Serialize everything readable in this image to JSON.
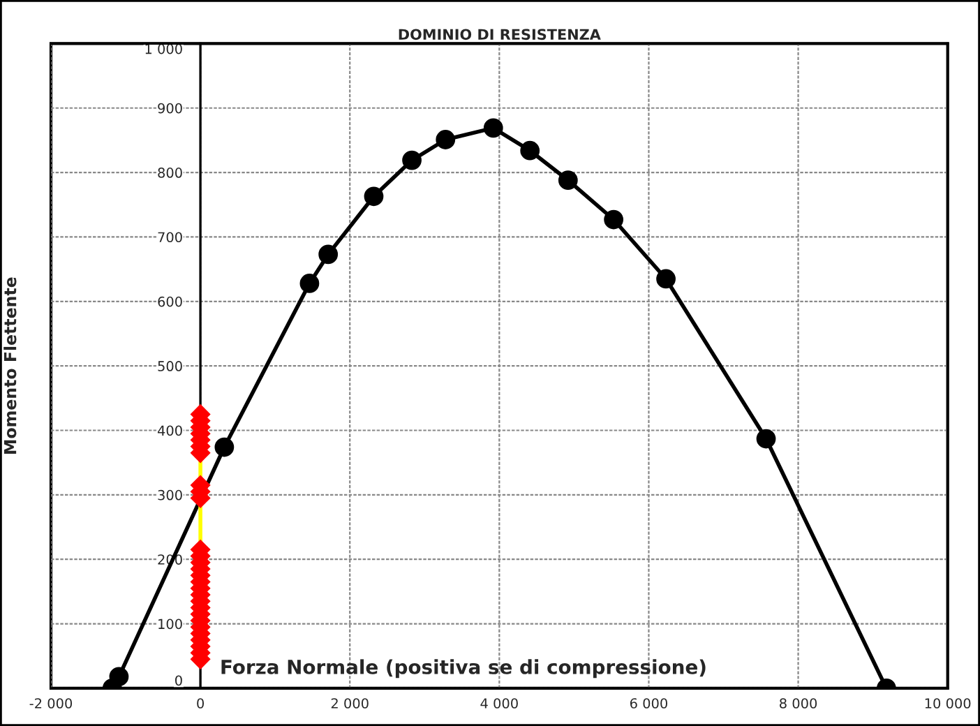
{
  "chart_data": {
    "type": "line",
    "title": "DOMINIO DI RESISTENZA",
    "xlabel": "Forza Normale (positiva se di compressione)",
    "ylabel": "Momento Flettente",
    "series": [
      {
        "color": "#000000",
        "marker": "circle",
        "line_style": "solid",
        "x": [
          -1180,
          -1090,
          320,
          1460,
          1710,
          2320,
          2830,
          3280,
          3920,
          4410,
          4920,
          5530,
          6230,
          7570,
          9180
        ],
        "values": [
          0,
          18,
          374,
          628,
          673,
          763,
          819,
          851,
          869,
          834,
          788,
          727,
          635,
          387,
          0
        ]
      },
      {
        "color": "#ffff00",
        "marker": "none",
        "line_style": "solid",
        "x": [
          0,
          0
        ],
        "values": [
          228,
          282
        ]
      },
      {
        "color": "#ffff00",
        "marker": "none",
        "line_style": "solid",
        "x": [
          0,
          0
        ],
        "values": [
          328,
          352
        ]
      },
      {
        "type": "scatter",
        "color": "#ff0000",
        "marker": "diamond",
        "x": [
          0,
          0,
          0,
          0,
          0,
          0,
          0,
          0,
          0,
          0,
          0,
          0,
          0,
          0,
          0,
          0,
          0,
          0,
          0,
          0,
          0,
          0,
          0,
          0,
          0,
          0,
          0,
          0
        ],
        "values": [
          45,
          55,
          65,
          75,
          85,
          95,
          105,
          115,
          125,
          135,
          145,
          155,
          165,
          175,
          185,
          195,
          205,
          215,
          295,
          305,
          315,
          365,
          375,
          385,
          395,
          405,
          415,
          425
        ]
      }
    ],
    "xlim": [
      -2000,
      10000
    ],
    "ylim": [
      0,
      1000
    ],
    "xticks": [
      {
        "value": -2000,
        "label": "-2 000"
      },
      0,
      {
        "value": 2000,
        "label": "2 000"
      },
      {
        "value": 4000,
        "label": "4 000"
      },
      {
        "value": 6000,
        "label": "6 000"
      },
      {
        "value": 8000,
        "label": "8 000"
      },
      {
        "value": 10000,
        "label": "10 000"
      }
    ],
    "yticks": [
      0,
      100,
      200,
      300,
      400,
      500,
      600,
      700,
      800,
      900,
      {
        "value": 1000,
        "label": "1 000"
      }
    ],
    "grid": true
  }
}
